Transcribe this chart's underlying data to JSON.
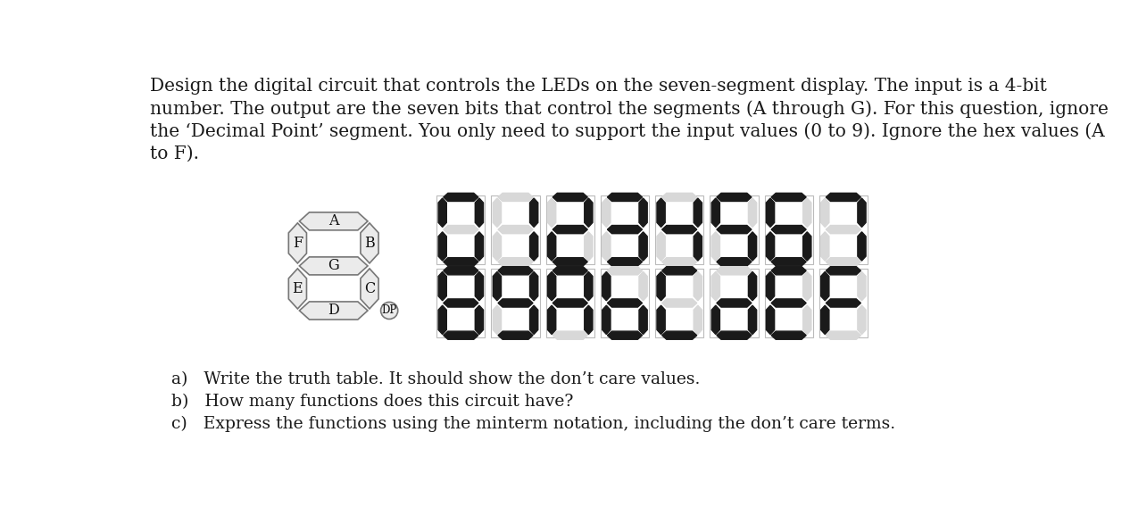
{
  "title_lines": [
    "Design the digital circuit that controls the LEDs on the seven-segment display. The input is a 4-bit",
    "number. The output are the seven bits that control the segments (A through G). For this question, ignore",
    "the ‘Decimal Point’ segment. You only need to support the input values (0 to 9). Ignore the hex values (A",
    "to F)."
  ],
  "questions": [
    "a)   Write the truth table. It should show the don’t care values.",
    "b)   How many functions does this circuit have?",
    "c)   Express the functions using the minterm notation, including the don’t care terms."
  ],
  "segment_display_digits": [
    [
      1,
      1,
      1,
      1,
      1,
      1,
      0
    ],
    [
      0,
      1,
      1,
      0,
      0,
      0,
      0
    ],
    [
      1,
      1,
      0,
      1,
      1,
      0,
      1
    ],
    [
      1,
      1,
      1,
      1,
      0,
      0,
      1
    ],
    [
      0,
      1,
      1,
      0,
      0,
      1,
      1
    ],
    [
      1,
      0,
      1,
      1,
      0,
      1,
      1
    ],
    [
      1,
      0,
      1,
      1,
      1,
      1,
      1
    ],
    [
      1,
      1,
      1,
      0,
      0,
      0,
      0
    ],
    [
      1,
      1,
      1,
      1,
      1,
      1,
      1
    ],
    [
      1,
      1,
      1,
      1,
      0,
      1,
      1
    ],
    [
      1,
      1,
      1,
      0,
      1,
      1,
      1
    ],
    [
      0,
      0,
      1,
      1,
      1,
      1,
      1
    ],
    [
      1,
      0,
      0,
      1,
      1,
      1,
      0
    ],
    [
      0,
      1,
      1,
      1,
      1,
      0,
      1
    ],
    [
      1,
      0,
      0,
      1,
      1,
      1,
      1
    ],
    [
      1,
      0,
      0,
      0,
      1,
      1,
      1
    ]
  ],
  "bg_color": "#ffffff",
  "seg_on_color": "#1a1a1a",
  "seg_off_color": "#d8d8d8",
  "seg_diagram_fill": "#ebebeb",
  "seg_diagram_edge": "#777777",
  "title_fontsize": 14.5,
  "question_fontsize": 13.5,
  "text_color": "#1a1a1a"
}
